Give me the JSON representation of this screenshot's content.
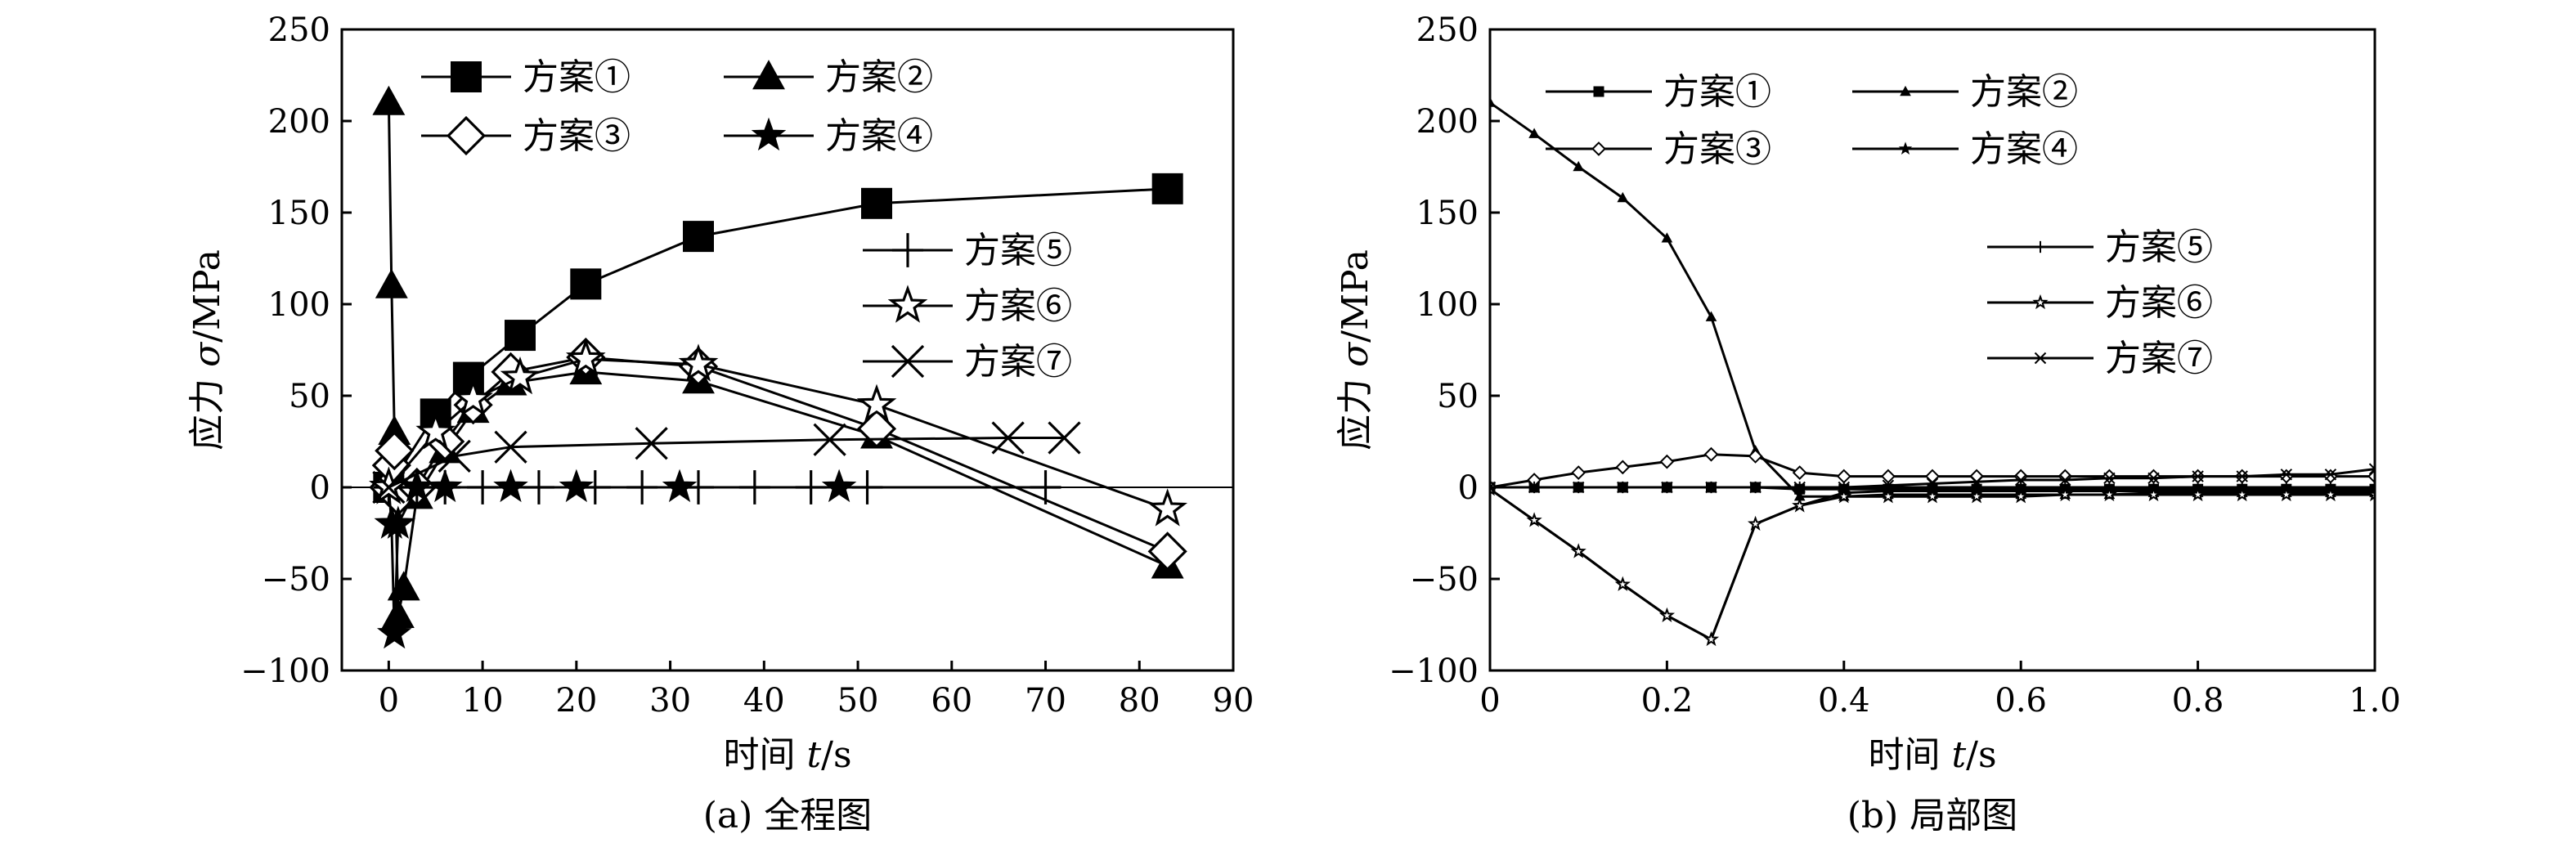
{
  "figure": {
    "panels": [
      {
        "id": "a",
        "caption": "(a) 全程图",
        "xlabel_main": "时间 ",
        "xlabel_var": "t",
        "xlabel_unit": "/s",
        "ylabel_main": "应力 ",
        "ylabel_var": "σ",
        "ylabel_unit": "/MPa"
      },
      {
        "id": "b",
        "caption": "(b) 局部图",
        "xlabel_main": "时间 ",
        "xlabel_var": "t",
        "xlabel_unit": "/s",
        "ylabel_main": "应力 ",
        "ylabel_var": "σ",
        "ylabel_unit": "/MPa"
      }
    ]
  },
  "chart_data": [
    {
      "type": "line",
      "panel": "a",
      "title": "",
      "caption": "(a) 全程图",
      "xlabel": "时间 t/s",
      "ylabel": "应力 σ/MPa",
      "xlim": [
        -5,
        90
      ],
      "ylim": [
        -100,
        250
      ],
      "xticks": [
        0,
        10,
        20,
        30,
        40,
        50,
        60,
        70,
        80,
        90
      ],
      "yticks": [
        -100,
        -50,
        0,
        50,
        100,
        150,
        200,
        250
      ],
      "xtick_labels": [
        "0",
        "10",
        "20",
        "30",
        "40",
        "50",
        "60",
        "70",
        "80",
        "90"
      ],
      "ytick_labels": [
        "−100",
        "−50",
        "0",
        "50",
        "100",
        "150",
        "200",
        "250"
      ],
      "grid": false,
      "legend": "top-left and right",
      "series": [
        {
          "name": "方案①",
          "marker": "square",
          "x": [
            0,
            5,
            8.5,
            14,
            21,
            33,
            52,
            83
          ],
          "y": [
            0,
            40,
            60,
            83,
            111,
            137,
            155,
            163
          ]
        },
        {
          "name": "方案②",
          "marker": "triangle",
          "x": [
            0,
            0.3,
            0.6,
            1,
            1.6,
            3,
            6,
            9,
            13,
            21,
            33,
            52,
            83
          ],
          "y": [
            210,
            110,
            30,
            -70,
            -55,
            -5,
            20,
            42,
            57,
            63,
            58,
            28,
            -43
          ]
        },
        {
          "name": "方案③",
          "marker": "diamond",
          "x": [
            0,
            0.3,
            0.6,
            1,
            3,
            6,
            9,
            13,
            21,
            33,
            52,
            83
          ],
          "y": [
            0,
            12,
            20,
            -5,
            0,
            25,
            45,
            63,
            71,
            66,
            32,
            -35
          ]
        },
        {
          "name": "方案④",
          "marker": "star-filled",
          "x": [
            0,
            0.3,
            0.6,
            1,
            3,
            6,
            13,
            20,
            31,
            48
          ],
          "y": [
            0,
            -20,
            -80,
            -20,
            0,
            0,
            0,
            0,
            0,
            0
          ]
        },
        {
          "name": "方案⑤",
          "marker": "plus",
          "x": [
            0,
            3,
            6,
            10,
            16,
            22,
            27,
            33,
            39,
            45,
            51,
            70
          ],
          "y": [
            0,
            0,
            0,
            0,
            0,
            0,
            0,
            0,
            0,
            0,
            0,
            0
          ]
        },
        {
          "name": "方案⑥",
          "marker": "star-open",
          "x": [
            0,
            5,
            9,
            14,
            21,
            33,
            52,
            83
          ],
          "y": [
            0,
            30,
            48,
            60,
            70,
            67,
            45,
            -12
          ]
        },
        {
          "name": "方案⑦",
          "marker": "x",
          "x": [
            0,
            7,
            13,
            28,
            47,
            66,
            72
          ],
          "y": [
            0,
            17,
            22,
            24,
            26,
            27,
            27
          ]
        }
      ]
    },
    {
      "type": "line",
      "panel": "b",
      "title": "",
      "caption": "(b) 局部图",
      "xlabel": "时间 t/s",
      "ylabel": "应力 σ/MPa",
      "xlim": [
        0,
        1.0
      ],
      "ylim": [
        -100,
        250
      ],
      "xticks": [
        0,
        0.2,
        0.4,
        0.6,
        0.8,
        1.0
      ],
      "yticks": [
        -100,
        -50,
        0,
        50,
        100,
        150,
        200,
        250
      ],
      "xtick_labels": [
        "0",
        "0.2",
        "0.4",
        "0.6",
        "0.8",
        "1.0"
      ],
      "ytick_labels": [
        "−100",
        "−50",
        "0",
        "50",
        "100",
        "150",
        "200",
        "250"
      ],
      "grid": false,
      "legend": "top-left and right",
      "series": [
        {
          "name": "方案①",
          "marker": "square",
          "x": [
            0,
            0.05,
            0.1,
            0.15,
            0.2,
            0.25,
            0.3,
            0.35,
            0.4,
            0.45,
            0.5,
            0.55,
            0.6,
            0.65,
            0.7,
            0.75,
            0.8,
            0.85,
            0.9,
            0.95,
            1.0
          ],
          "y": [
            0,
            0,
            0,
            0,
            0,
            0,
            0,
            -1,
            -1,
            -1,
            -1,
            -1,
            -1,
            -1,
            -1,
            -1,
            -1,
            -1,
            -1,
            -1,
            -1
          ]
        },
        {
          "name": "方案②",
          "marker": "triangle",
          "x": [
            0,
            0.05,
            0.1,
            0.15,
            0.2,
            0.25,
            0.3,
            0.35,
            0.4,
            0.45,
            0.5,
            0.55,
            0.6,
            0.65,
            0.7,
            0.75,
            0.8,
            0.85,
            0.9,
            0.95,
            1.0
          ],
          "y": [
            210,
            193,
            175,
            158,
            136,
            93,
            20,
            -5,
            -5,
            -4,
            -4,
            -4,
            -4,
            -4,
            -4,
            -3,
            -3,
            -3,
            -3,
            -3,
            -3
          ]
        },
        {
          "name": "方案③",
          "marker": "diamond",
          "x": [
            0,
            0.05,
            0.1,
            0.15,
            0.2,
            0.25,
            0.3,
            0.35,
            0.4,
            0.45,
            0.5,
            0.55,
            0.6,
            0.65,
            0.7,
            0.75,
            0.8,
            0.85,
            0.9,
            0.95,
            1.0
          ],
          "y": [
            0,
            4,
            8,
            11,
            14,
            18,
            17,
            8,
            6,
            6,
            6,
            6,
            6,
            6,
            6,
            6,
            6,
            6,
            6,
            6,
            6
          ]
        },
        {
          "name": "方案④",
          "marker": "star-filled",
          "x": [
            0,
            0.05,
            0.1,
            0.15,
            0.2,
            0.25,
            0.3,
            0.35,
            0.4,
            0.45,
            0.5,
            0.55,
            0.6,
            0.65,
            0.7,
            0.75,
            0.8,
            0.85,
            0.9,
            0.95,
            1.0
          ],
          "y": [
            -1,
            -18,
            -35,
            -53,
            -70,
            -83,
            -20,
            -10,
            -3,
            -2,
            -2,
            -2,
            -2,
            -2,
            -2,
            -2,
            -2,
            -2,
            -2,
            -2,
            -2
          ]
        },
        {
          "name": "方案⑤",
          "marker": "plus",
          "x": [
            0,
            0.05,
            0.1,
            0.15,
            0.2,
            0.25,
            0.3,
            0.35,
            0.4,
            0.45,
            0.5,
            0.55,
            0.6,
            0.65,
            0.7,
            0.75,
            0.8,
            0.85,
            0.9,
            0.95,
            1.0
          ],
          "y": [
            0,
            0,
            0,
            0,
            0,
            0,
            0,
            0,
            0,
            0,
            0,
            0,
            0,
            0,
            0,
            0,
            0,
            0,
            0,
            0,
            0
          ]
        },
        {
          "name": "方案⑥",
          "marker": "star-open",
          "x": [
            0,
            0.05,
            0.1,
            0.15,
            0.2,
            0.25,
            0.3,
            0.35,
            0.4,
            0.45,
            0.5,
            0.55,
            0.6,
            0.65,
            0.7,
            0.75,
            0.8,
            0.85,
            0.9,
            0.95,
            1.0
          ],
          "y": [
            -1,
            -18,
            -35,
            -53,
            -70,
            -83,
            -20,
            -10,
            -5,
            -5,
            -5,
            -5,
            -5,
            -4,
            -4,
            -4,
            -4,
            -4,
            -4,
            -4,
            -4
          ]
        },
        {
          "name": "方案⑦",
          "marker": "x",
          "x": [
            0,
            0.05,
            0.1,
            0.15,
            0.2,
            0.25,
            0.3,
            0.35,
            0.4,
            0.45,
            0.5,
            0.55,
            0.6,
            0.65,
            0.7,
            0.75,
            0.8,
            0.85,
            0.9,
            0.95,
            1.0
          ],
          "y": [
            0,
            0,
            0,
            0,
            0,
            0,
            0,
            0,
            0,
            1,
            2,
            3,
            4,
            4,
            5,
            5,
            6,
            6,
            7,
            7,
            10
          ]
        }
      ]
    }
  ]
}
